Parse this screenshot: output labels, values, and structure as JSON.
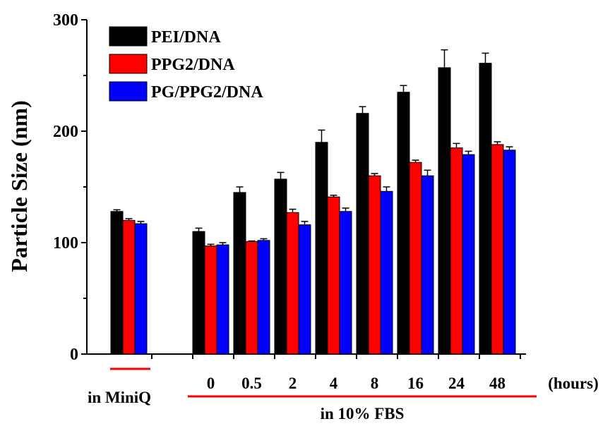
{
  "colors": {
    "series": [
      "#000000",
      "#ff0000",
      "#0000ff"
    ],
    "group_underline": "#ff0000",
    "axis": "#000000"
  },
  "chart_data": {
    "type": "bar",
    "title": "",
    "ylabel": "Particle Size (nm)",
    "xlabel": "",
    "ylim": [
      0,
      300
    ],
    "yticks": [
      0,
      100,
      200,
      300
    ],
    "grid": false,
    "legend_position": "top-left",
    "categories": [
      "",
      "0",
      "0.5",
      "2",
      "4",
      "8",
      "16",
      "24",
      "48"
    ],
    "x_unit_label": "(hours)",
    "group_labels": [
      {
        "label": "in MiniQ",
        "from": 0,
        "to": 0
      },
      {
        "label": "in 10% FBS",
        "from": 1,
        "to": 8
      }
    ],
    "series": [
      {
        "name": "PEI/DNA",
        "values": [
          128,
          110,
          145,
          157,
          190,
          216,
          235,
          257,
          261
        ],
        "errors": [
          1.5,
          3,
          5,
          6,
          11,
          6,
          6,
          16,
          9
        ]
      },
      {
        "name": "PPG2/DNA",
        "values": [
          120,
          97,
          101,
          127,
          141,
          160,
          172,
          185,
          188
        ],
        "errors": [
          1.5,
          1.5,
          0.5,
          3,
          1.5,
          2,
          2,
          4,
          2.5
        ]
      },
      {
        "name": "PG/PPG2/DNA",
        "values": [
          117,
          98,
          102,
          116,
          128,
          146,
          160,
          179,
          183
        ],
        "errors": [
          2,
          2,
          1.5,
          3,
          3,
          4,
          5,
          3,
          3
        ]
      }
    ]
  }
}
